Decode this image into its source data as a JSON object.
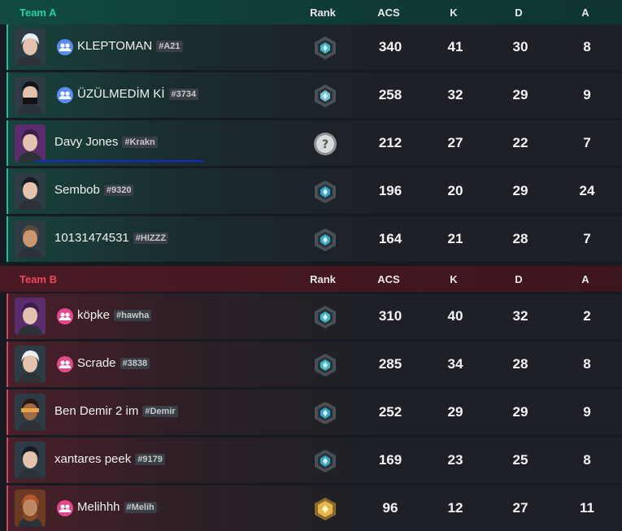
{
  "headers": {
    "rank": "Rank",
    "acs": "ACS",
    "k": "K",
    "d": "D",
    "a": "A"
  },
  "team_a": {
    "name": "Team A",
    "color": "#1fd2a3",
    "players": [
      {
        "name": "KLEPTOMAN",
        "tag": "#A21",
        "acs": "340",
        "k": "41",
        "d": "30",
        "a": "8",
        "party": "blue",
        "rank_icon": "ascendant-rank-icon",
        "agent_icon": "white-haired-agent-icon"
      },
      {
        "name": "ÜZÜLMEDİM Kİ",
        "tag": "#3734",
        "acs": "258",
        "k": "32",
        "d": "29",
        "a": "9",
        "party": "blue",
        "rank_icon": "platinum-rank-icon",
        "agent_icon": "masked-agent-icon"
      },
      {
        "name": "Davy Jones",
        "tag": "#Krakn",
        "acs": "212",
        "k": "27",
        "d": "22",
        "a": "7",
        "party": "",
        "rank_icon": "unknown-rank-icon",
        "agent_icon": "purple-haired-agent-icon"
      },
      {
        "name": "Sembob",
        "tag": "#9320",
        "acs": "196",
        "k": "20",
        "d": "29",
        "a": "24",
        "party": "",
        "rank_icon": "diamond-rank-icon",
        "agent_icon": "dark-haired-agent-icon"
      },
      {
        "name": "10131474531",
        "tag": "#HIZZZ",
        "acs": "164",
        "k": "21",
        "d": "28",
        "a": "7",
        "party": "",
        "rank_icon": "diamond-rank-icon",
        "agent_icon": "bald-agent-icon"
      }
    ]
  },
  "team_b": {
    "name": "Team B",
    "color": "#f0485e",
    "players": [
      {
        "name": "köpke",
        "tag": "#hawha",
        "acs": "310",
        "k": "40",
        "d": "32",
        "a": "2",
        "party": "pink",
        "rank_icon": "ascendant-rank-icon",
        "agent_icon": "purple-haired-agent-icon"
      },
      {
        "name": "Scrade",
        "tag": "#3838",
        "acs": "285",
        "k": "34",
        "d": "28",
        "a": "8",
        "party": "pink",
        "rank_icon": "ascendant-rank-icon",
        "agent_icon": "white-haired-agent-icon"
      },
      {
        "name": "Ben Demir 2 im",
        "tag": "#Demir",
        "acs": "252",
        "k": "29",
        "d": "29",
        "a": "9",
        "party": "",
        "rank_icon": "diamond-rank-icon",
        "agent_icon": "visor-agent-icon"
      },
      {
        "name": "xantares peek",
        "tag": "#9179",
        "acs": "169",
        "k": "23",
        "d": "25",
        "a": "8",
        "party": "",
        "rank_icon": "diamond-rank-icon",
        "agent_icon": "dark-haired-agent-icon"
      },
      {
        "name": "Melihhh",
        "tag": "#Melih",
        "acs": "96",
        "k": "12",
        "d": "27",
        "a": "11",
        "party": "pink",
        "rank_icon": "gold-rank-icon",
        "agent_icon": "bearded-agent-icon"
      }
    ]
  }
}
